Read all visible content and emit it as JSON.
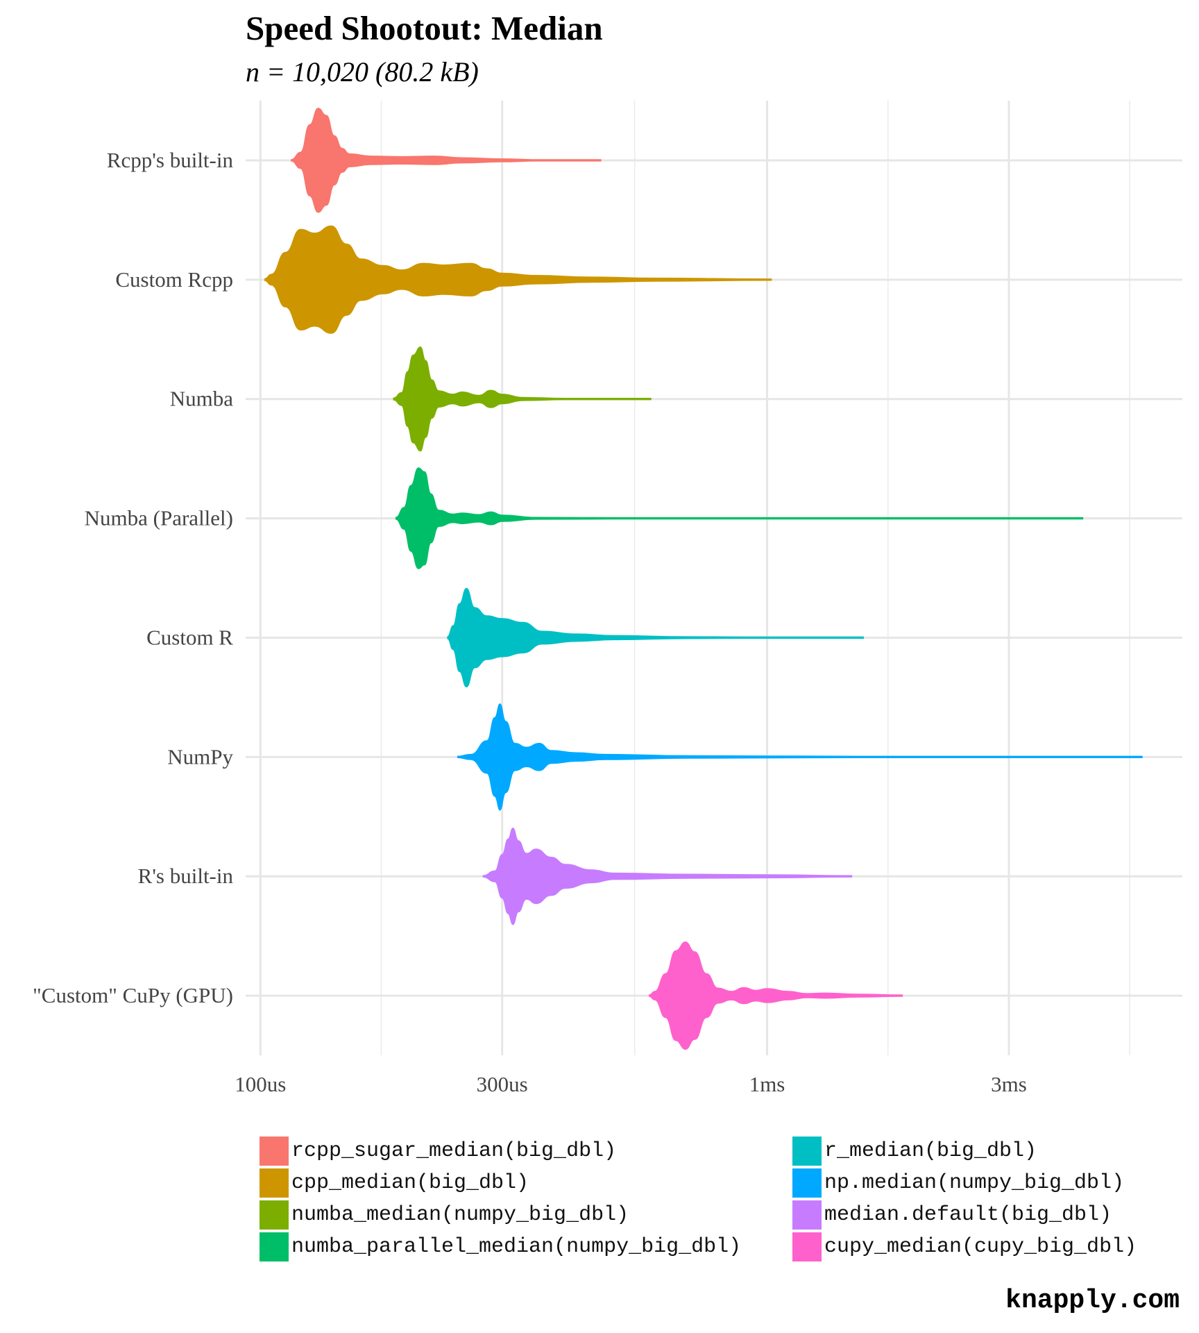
{
  "chart_data": {
    "type": "violin",
    "title": "Speed Shootout: Median",
    "subtitle": "n = 10,020 (80.2 kB)",
    "xlabel": "",
    "ylabel": "",
    "x_scale": "log10",
    "x_unit": "seconds",
    "xlim": [
      9.35e-05,
      0.0066
    ],
    "x_ticks": [
      {
        "value": 0.0001,
        "label": "100us"
      },
      {
        "value": 0.0003,
        "label": "300us"
      },
      {
        "value": 0.001,
        "label": "1ms"
      },
      {
        "value": 0.003,
        "label": "3ms"
      }
    ],
    "grid": true,
    "legend_position": "bottom",
    "categories": [
      "Rcpp's built-in",
      "Custom Rcpp",
      "Numba",
      "Numba (Parallel)",
      "Custom R",
      "NumPy",
      "R's built-in",
      "\"Custom\" CuPy (GPU)"
    ],
    "series": [
      {
        "name": "rcpp_sugar_median(big_dbl)",
        "category": "Rcpp's built-in",
        "color": "#F8766D",
        "range": [
          0.000115,
          0.00047
        ],
        "density": [
          [
            0.000115,
            0.01
          ],
          [
            0.00012,
            0.15
          ],
          [
            0.000125,
            0.65
          ],
          [
            0.00013,
            0.95
          ],
          [
            0.000135,
            0.82
          ],
          [
            0.00014,
            0.45
          ],
          [
            0.000145,
            0.22
          ],
          [
            0.00015,
            0.12
          ],
          [
            0.000165,
            0.08
          ],
          [
            0.00019,
            0.07
          ],
          [
            0.00022,
            0.08
          ],
          [
            0.00025,
            0.05
          ],
          [
            0.0003,
            0.03
          ],
          [
            0.00035,
            0.015
          ],
          [
            0.00047,
            0.008
          ]
        ]
      },
      {
        "name": "cpp_median(big_dbl)",
        "category": "Custom Rcpp",
        "color": "#CD9600",
        "range": [
          0.000102,
          0.00102
        ],
        "density": [
          [
            0.000102,
            0.02
          ],
          [
            0.000105,
            0.1
          ],
          [
            0.000112,
            0.5
          ],
          [
            0.00012,
            0.92
          ],
          [
            0.000128,
            0.85
          ],
          [
            0.000138,
            0.98
          ],
          [
            0.000148,
            0.65
          ],
          [
            0.000158,
            0.38
          ],
          [
            0.000175,
            0.26
          ],
          [
            0.00019,
            0.18
          ],
          [
            0.00021,
            0.3
          ],
          [
            0.00023,
            0.27
          ],
          [
            0.00026,
            0.3
          ],
          [
            0.00028,
            0.2
          ],
          [
            0.0003,
            0.12
          ],
          [
            0.00035,
            0.08
          ],
          [
            0.00045,
            0.05
          ],
          [
            0.0006,
            0.03
          ],
          [
            0.00102,
            0.01
          ]
        ]
      },
      {
        "name": "numba_median(numpy_big_dbl)",
        "category": "Numba",
        "color": "#7CAE00",
        "range": [
          0.000183,
          0.00059
        ],
        "density": [
          [
            0.000183,
            0.02
          ],
          [
            0.00019,
            0.12
          ],
          [
            0.000195,
            0.5
          ],
          [
            0.0002,
            0.8
          ],
          [
            0.000207,
            0.95
          ],
          [
            0.000212,
            0.7
          ],
          [
            0.000218,
            0.35
          ],
          [
            0.000225,
            0.15
          ],
          [
            0.00024,
            0.09
          ],
          [
            0.00025,
            0.13
          ],
          [
            0.00027,
            0.07
          ],
          [
            0.000285,
            0.16
          ],
          [
            0.0003,
            0.09
          ],
          [
            0.00033,
            0.03
          ],
          [
            0.0004,
            0.015
          ],
          [
            0.00059,
            0.008
          ]
        ]
      },
      {
        "name": "numba_parallel_median(numpy_big_dbl)",
        "category": "Numba (Parallel)",
        "color": "#00BE67",
        "range": [
          0.000185,
          0.0042
        ],
        "density": [
          [
            0.000185,
            0.02
          ],
          [
            0.000192,
            0.2
          ],
          [
            0.000198,
            0.6
          ],
          [
            0.000205,
            0.92
          ],
          [
            0.000211,
            0.85
          ],
          [
            0.000217,
            0.45
          ],
          [
            0.000225,
            0.15
          ],
          [
            0.00024,
            0.08
          ],
          [
            0.00025,
            0.1
          ],
          [
            0.00027,
            0.07
          ],
          [
            0.000285,
            0.12
          ],
          [
            0.0003,
            0.06
          ],
          [
            0.00035,
            0.02
          ],
          [
            0.0005,
            0.012
          ],
          [
            0.002,
            0.01
          ],
          [
            0.0042,
            0.008
          ]
        ]
      },
      {
        "name": "r_median(big_dbl)",
        "category": "Custom R",
        "color": "#00BFC4",
        "range": [
          0.000234,
          0.00155
        ],
        "density": [
          [
            0.000234,
            0.02
          ],
          [
            0.00024,
            0.22
          ],
          [
            0.000247,
            0.62
          ],
          [
            0.000255,
            0.9
          ],
          [
            0.000265,
            0.55
          ],
          [
            0.00028,
            0.4
          ],
          [
            0.0003,
            0.35
          ],
          [
            0.00033,
            0.28
          ],
          [
            0.00036,
            0.12
          ],
          [
            0.00042,
            0.07
          ],
          [
            0.0005,
            0.04
          ],
          [
            0.0007,
            0.02
          ],
          [
            0.0009,
            0.012
          ],
          [
            0.00155,
            0.006
          ]
        ]
      },
      {
        "name": "np.median(numpy_big_dbl)",
        "category": "NumPy",
        "color": "#00A9FF",
        "range": [
          0.000245,
          0.0055
        ],
        "density": [
          [
            0.000245,
            0.01
          ],
          [
            0.00026,
            0.05
          ],
          [
            0.00028,
            0.3
          ],
          [
            0.00029,
            0.72
          ],
          [
            0.000297,
            0.97
          ],
          [
            0.000305,
            0.65
          ],
          [
            0.000318,
            0.25
          ],
          [
            0.000335,
            0.18
          ],
          [
            0.000355,
            0.25
          ],
          [
            0.000375,
            0.12
          ],
          [
            0.00042,
            0.08
          ],
          [
            0.00048,
            0.05
          ],
          [
            0.0007,
            0.025
          ],
          [
            0.0015,
            0.012
          ],
          [
            0.003,
            0.01
          ],
          [
            0.0055,
            0.008
          ]
        ]
      },
      {
        "name": "median.default(big_dbl)",
        "category": "R's built-in",
        "color": "#C77CFF",
        "range": [
          0.000275,
          0.00147
        ],
        "density": [
          [
            0.000275,
            0.01
          ],
          [
            0.00029,
            0.1
          ],
          [
            0.0003,
            0.4
          ],
          [
            0.000308,
            0.68
          ],
          [
            0.000315,
            0.88
          ],
          [
            0.000323,
            0.65
          ],
          [
            0.000335,
            0.42
          ],
          [
            0.00035,
            0.5
          ],
          [
            0.000375,
            0.35
          ],
          [
            0.0004,
            0.22
          ],
          [
            0.00045,
            0.12
          ],
          [
            0.0005,
            0.06
          ],
          [
            0.0007,
            0.04
          ],
          [
            0.001,
            0.03
          ],
          [
            0.00147,
            0.01
          ]
        ]
      },
      {
        "name": "cupy_median(cupy_big_dbl)",
        "category": "\"Custom\" CuPy (GPU)",
        "color": "#FF61CC",
        "range": [
          0.000585,
          0.00185
        ],
        "density": [
          [
            0.000585,
            0.01
          ],
          [
            0.0006,
            0.08
          ],
          [
            0.00063,
            0.4
          ],
          [
            0.00066,
            0.82
          ],
          [
            0.00069,
            0.98
          ],
          [
            0.00072,
            0.8
          ],
          [
            0.00076,
            0.4
          ],
          [
            0.0008,
            0.14
          ],
          [
            0.00085,
            0.08
          ],
          [
            0.0009,
            0.15
          ],
          [
            0.00095,
            0.1
          ],
          [
            0.001,
            0.13
          ],
          [
            0.0011,
            0.08
          ],
          [
            0.0012,
            0.04
          ],
          [
            0.0013,
            0.05
          ],
          [
            0.0015,
            0.03
          ],
          [
            0.00185,
            0.01
          ]
        ]
      }
    ]
  },
  "caption": "knapply.com"
}
